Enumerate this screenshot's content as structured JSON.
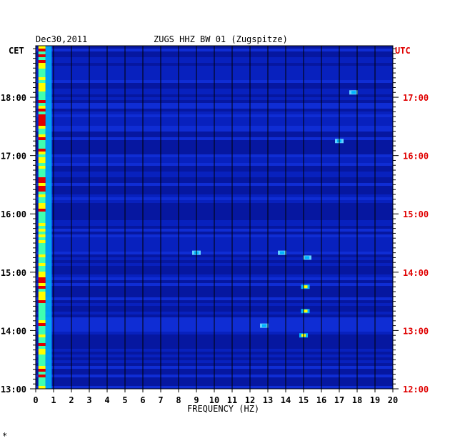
{
  "header": {
    "date": "Dec30,2011",
    "station": "ZUGS HHZ BW 01 (Zugspitze)",
    "left_zone": "CET",
    "right_zone": "UTC"
  },
  "colors": {
    "background": "#0a1aa8",
    "low": "#0018b0",
    "mid": "#00b4ff",
    "high": "#ffff00",
    "peak": "#e00000",
    "grid": "#000000",
    "utc_label": "#e00000"
  },
  "footer": {
    "mark": "*"
  },
  "chart_data": {
    "type": "heatmap",
    "title": "ZUGS HHZ BW 01 (Zugspitze)",
    "xlabel": "FREQUENCY (HZ)",
    "ylabel": "",
    "xlim": [
      0,
      20
    ],
    "x_ticks": [
      "0",
      "1",
      "2",
      "3",
      "4",
      "5",
      "6",
      "7",
      "8",
      "9",
      "10",
      "11",
      "12",
      "13",
      "14",
      "15",
      "16",
      "17",
      "18",
      "19",
      "20"
    ],
    "y_ticks_cet": [
      "18:00",
      "17:00",
      "16:00",
      "15:00",
      "14:00",
      "13:00"
    ],
    "y_ticks_utc": [
      "17:00",
      "16:00",
      "15:00",
      "14:00",
      "13:00",
      "12:00"
    ],
    "time_range_cet": [
      "13:00",
      "18:53"
    ],
    "grid": true,
    "hotspots": [
      {
        "freq": 0.3,
        "time_cet": "13:00-18:53",
        "intensity": "high"
      },
      {
        "freq": 15.1,
        "time_cet": "14:45",
        "intensity": "high"
      },
      {
        "freq": 15.1,
        "time_cet": "14:20",
        "intensity": "high"
      },
      {
        "freq": 15.0,
        "time_cet": "13:55",
        "intensity": "high"
      },
      {
        "freq": 17.8,
        "time_cet": "18:05",
        "intensity": "mid"
      },
      {
        "freq": 17.0,
        "time_cet": "17:15",
        "intensity": "mid"
      },
      {
        "freq": 15.2,
        "time_cet": "15:15",
        "intensity": "mid"
      },
      {
        "freq": 9.0,
        "time_cet": "15:20",
        "intensity": "mid"
      },
      {
        "freq": 12.8,
        "time_cet": "14:05",
        "intensity": "mid"
      },
      {
        "freq": 13.8,
        "time_cet": "15:20",
        "intensity": "mid"
      }
    ]
  }
}
